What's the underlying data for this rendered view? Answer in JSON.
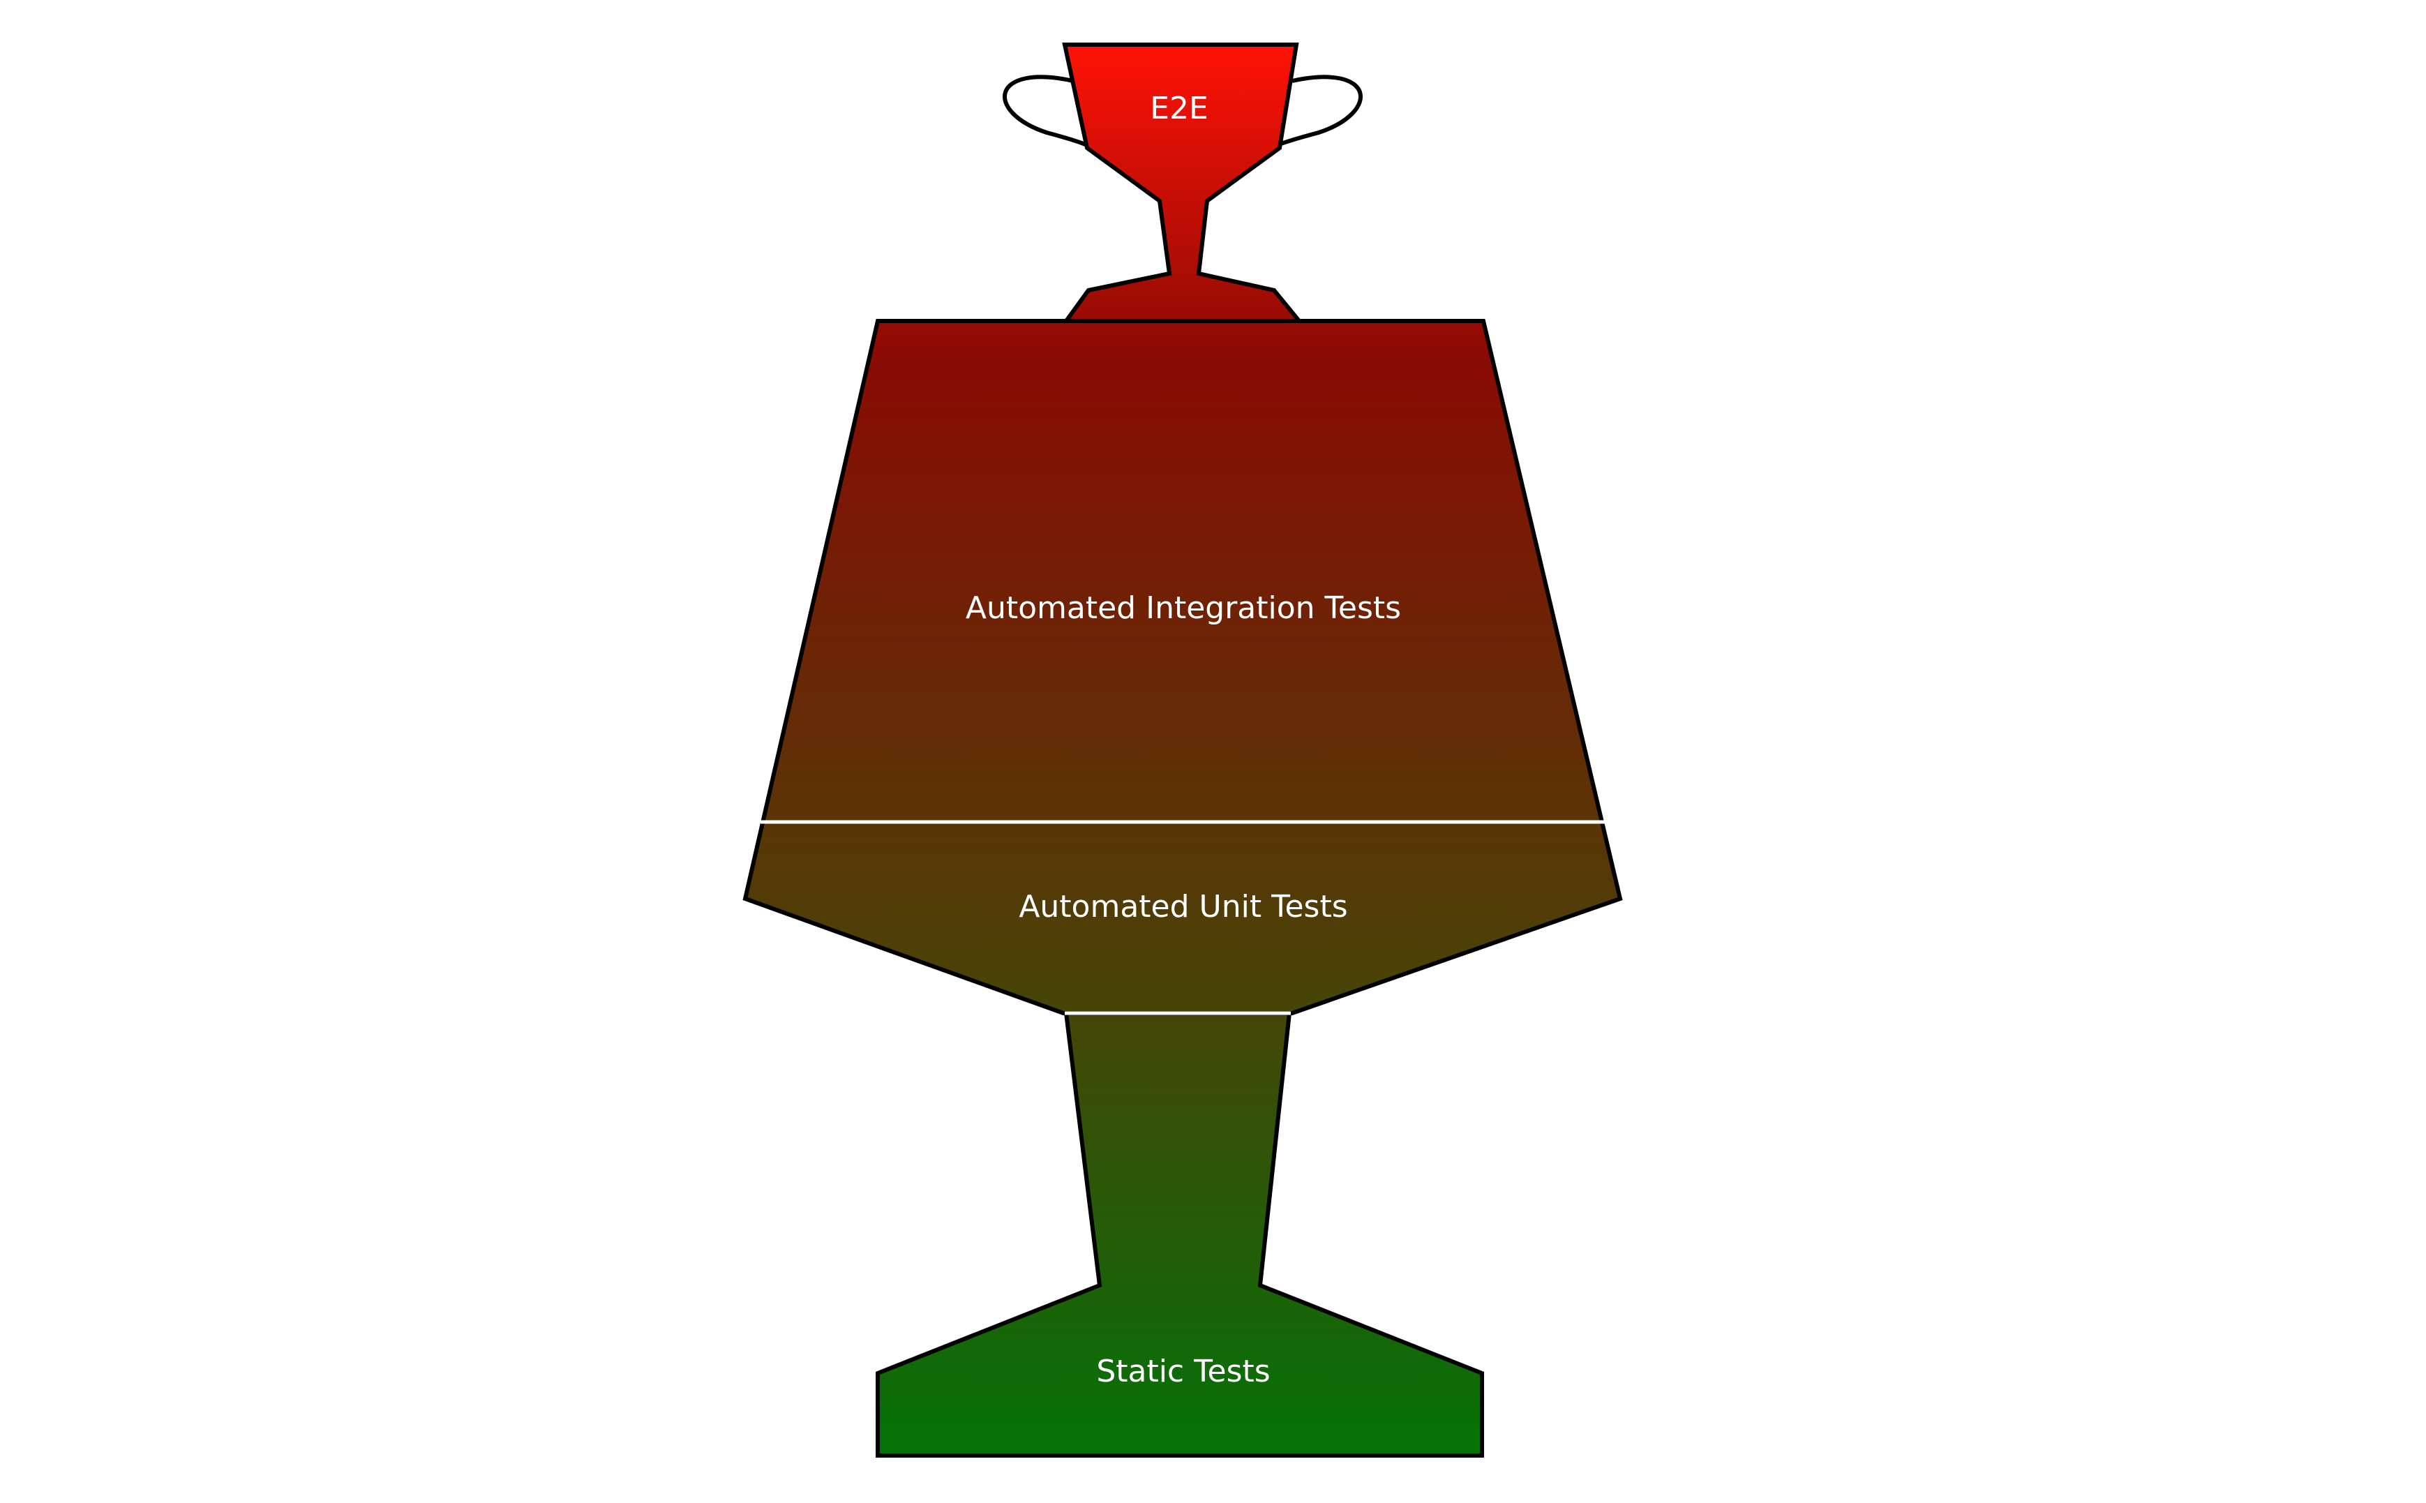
{
  "diagram": {
    "type": "testing-trophy",
    "layers": [
      {
        "id": "e2e",
        "label": "E2E"
      },
      {
        "id": "integration",
        "label": "Automated Integration Tests"
      },
      {
        "id": "unit",
        "label": "Automated Unit Tests"
      },
      {
        "id": "static",
        "label": "Static Tests"
      }
    ],
    "colors": {
      "top": "#ff1206",
      "upper": "#8a0b04",
      "middle": "#4a4207",
      "bottom": "#037307",
      "outline": "#000000",
      "divider": "#ffffff"
    }
  }
}
